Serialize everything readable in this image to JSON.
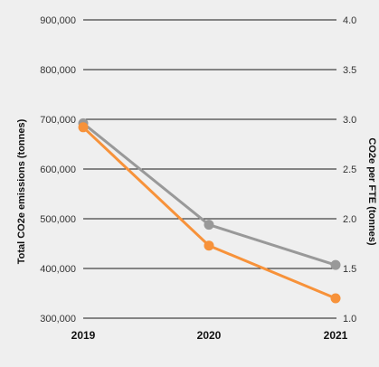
{
  "chart_data": {
    "type": "line",
    "categories": [
      "2019",
      "2020",
      "2021"
    ],
    "ylabel_left": "Total CO2e emissions (tonnes)",
    "ylabel_right": "CO2e per FTE (tonnes)",
    "ylim_left": [
      300000,
      900000
    ],
    "ylim_right": [
      1.0,
      4.0
    ],
    "yticks_left": [
      "900,000",
      "800,000",
      "700,000",
      "600,000",
      "500,000",
      "400,000",
      "300,000"
    ],
    "yticks_right": [
      "4.0",
      "3.5",
      "3.0",
      "2.5",
      "2.0",
      "1.5",
      "1.0"
    ],
    "grid": true,
    "series": [
      {
        "axis": "left",
        "color": "#999999",
        "values": [
          692000,
          488000,
          407000
        ]
      },
      {
        "axis": "right",
        "color": "#f7923a",
        "values": [
          2.92,
          1.73,
          1.2
        ]
      }
    ]
  }
}
